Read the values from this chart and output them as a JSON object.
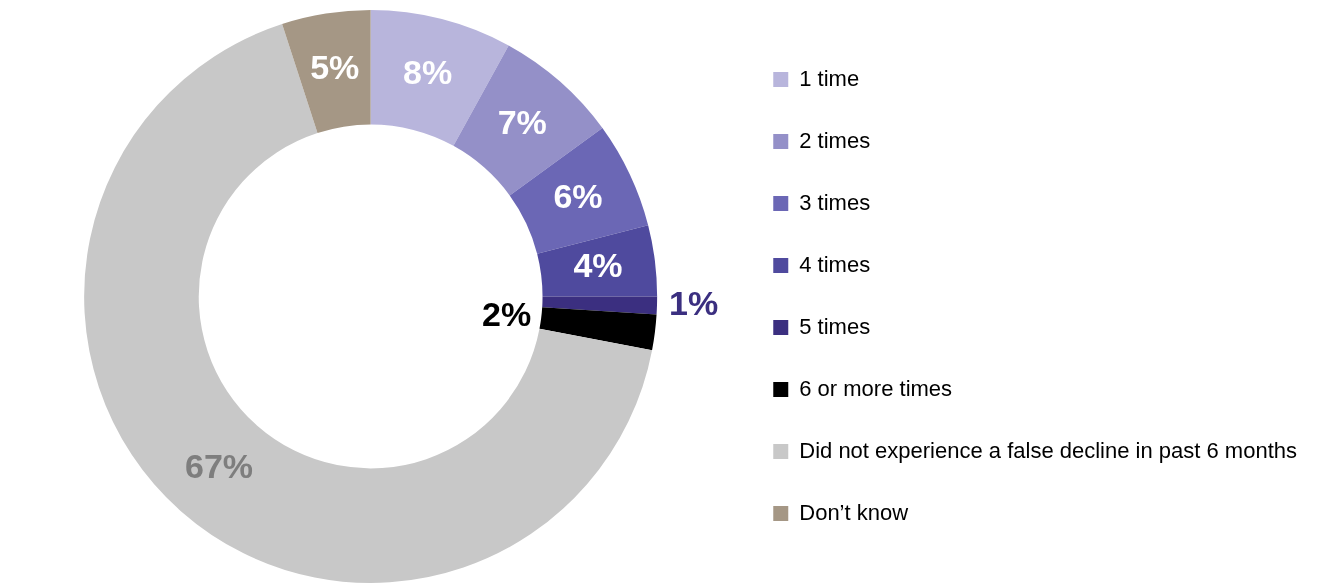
{
  "chart_data": {
    "type": "donut",
    "categories": [
      "1 time",
      "2 times",
      "3 times",
      "4 times",
      "5 times",
      "6 or more times",
      "Did not experience a false decline in past 6 months",
      "Don’t know"
    ],
    "values": [
      8,
      7,
      6,
      4,
      1,
      2,
      67,
      5
    ],
    "colors": [
      "#b8b5dc",
      "#9490c8",
      "#6b67b5",
      "#4f4a9e",
      "#3b2f80",
      "#000000",
      "#c8c8c8",
      "#a59785"
    ],
    "value_labels": [
      "8%",
      "7%",
      "6%",
      "4%",
      "1%",
      "2%",
      "67%",
      "5%"
    ],
    "legend": "right"
  }
}
